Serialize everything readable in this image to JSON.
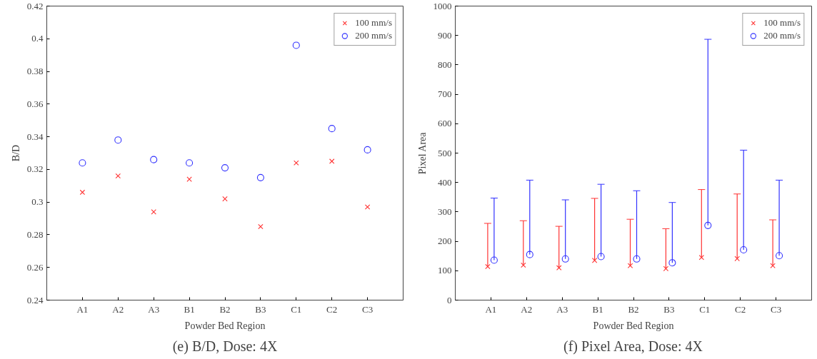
{
  "chart_data": [
    {
      "type": "scatter",
      "categories": [
        "A1",
        "A2",
        "A3",
        "B1",
        "B2",
        "B3",
        "C1",
        "C2",
        "C3"
      ],
      "xlabel": "Powder Bed Region",
      "ylabel": "B/D",
      "annotations": [
        "(e) B/D, Dose: 4X"
      ],
      "ylim": [
        0.24,
        0.42
      ],
      "yticks": [
        0.24,
        0.26,
        0.28,
        0.3,
        0.32,
        0.34,
        0.36,
        0.38,
        0.4,
        0.42
      ],
      "legend": "top right",
      "series": [
        {
          "name": "100 mm/s",
          "color": "#ff3333",
          "marker": "cross",
          "values": [
            0.306,
            0.316,
            0.294,
            0.314,
            0.302,
            0.285,
            0.324,
            0.325,
            0.297
          ]
        },
        {
          "name": "200 mm/s",
          "color": "#3333ff",
          "marker": "circle",
          "values": [
            0.324,
            0.338,
            0.326,
            0.324,
            0.321,
            0.315,
            0.396,
            0.345,
            0.332
          ]
        }
      ]
    },
    {
      "type": "scatter",
      "categories": [
        "A1",
        "A2",
        "A3",
        "B1",
        "B2",
        "B3",
        "C1",
        "C2",
        "C3"
      ],
      "xlabel": "Powder Bed Region",
      "ylabel": "Pixel Area",
      "annotations": [
        "(f) Pixel Area, Dose: 4X"
      ],
      "ylim": [
        0,
        1000
      ],
      "yticks": [
        0,
        100,
        200,
        300,
        400,
        500,
        600,
        700,
        800,
        900,
        1000
      ],
      "legend": "top right",
      "series": [
        {
          "name": "100 mm/s",
          "color": "#ff3333",
          "marker": "cross",
          "values": [
            114,
            119,
            110,
            135,
            117,
            107,
            145,
            141,
            117
          ],
          "errors": [
            [
              114,
              261
            ],
            [
              119,
              270
            ],
            [
              110,
              251
            ],
            [
              135,
              346
            ],
            [
              117,
              275
            ],
            [
              107,
              243
            ],
            [
              145,
              376
            ],
            [
              141,
              361
            ],
            [
              117,
              273
            ]
          ]
        },
        {
          "name": "200 mm/s",
          "color": "#3333ff",
          "marker": "circle",
          "values": [
            136,
            155,
            140,
            148,
            140,
            127,
            254,
            171,
            151
          ],
          "errors": [
            [
              136,
              347
            ],
            [
              155,
              408
            ],
            [
              140,
              341
            ],
            [
              148,
              394
            ],
            [
              140,
              372
            ],
            [
              127,
              332
            ],
            [
              254,
              887
            ],
            [
              171,
              510
            ],
            [
              151,
              408
            ]
          ]
        }
      ]
    }
  ]
}
